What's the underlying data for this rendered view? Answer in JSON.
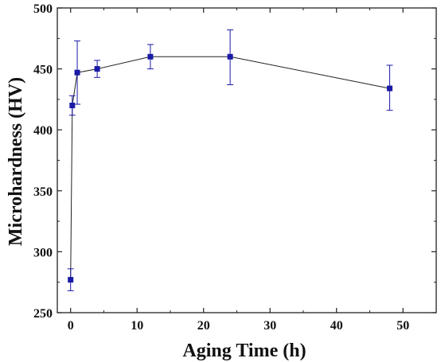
{
  "chart_data": {
    "type": "scatter",
    "title": "",
    "xlabel": "Aging Time (h)",
    "ylabel": "Microhardness (HV)",
    "xlim": [
      -2,
      55
    ],
    "ylim": [
      250,
      500
    ],
    "xticks": [
      "0",
      "10",
      "20",
      "30",
      "40",
      "50"
    ],
    "yticks": [
      "250",
      "300",
      "350",
      "400",
      "450",
      "500"
    ],
    "grid": false,
    "legend": "none",
    "marker": "square",
    "connected": true,
    "color": "#1a1aa6",
    "line_color": "#222222",
    "series": [
      {
        "x": [
          0,
          0.25,
          1,
          4,
          12,
          24,
          48
        ],
        "y": [
          277,
          420,
          447,
          450,
          460,
          460,
          434
        ],
        "y_err_upper": [
          286,
          428,
          473,
          457,
          470,
          482,
          453
        ],
        "y_err_lower": [
          268,
          412,
          421,
          443,
          450,
          437,
          416
        ]
      }
    ]
  }
}
